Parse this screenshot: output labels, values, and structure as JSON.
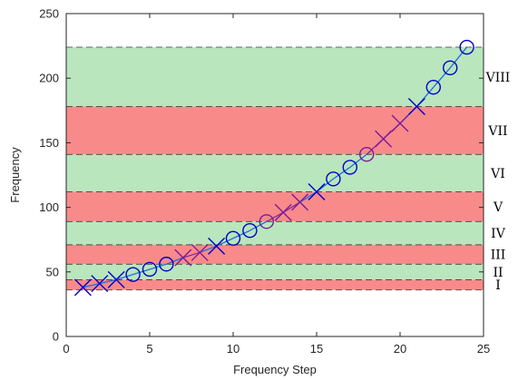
{
  "chart_data": {
    "type": "line",
    "xlabel": "Frequency Step",
    "ylabel": "Frequency",
    "xlim": [
      0,
      25
    ],
    "ylim": [
      0,
      250
    ],
    "xticks": [
      0,
      5,
      10,
      15,
      20,
      25
    ],
    "yticks": [
      0,
      50,
      100,
      150,
      200,
      250
    ],
    "grid": false,
    "colors": {
      "band_green": "#b9e6bd",
      "band_red": "#f98a8a",
      "band_edge": "#3a3a3a",
      "marker_blue": "#0000c8",
      "marker_purple": "#7a1a9a",
      "line_blue": "#1f6fd6",
      "line_purple": "#8a2a8a"
    },
    "bands": [
      {
        "label": "I",
        "y0": 36,
        "y1": 44,
        "color": "red"
      },
      {
        "label": "II",
        "y0": 44,
        "y1": 56,
        "color": "green"
      },
      {
        "label": "III",
        "y0": 56,
        "y1": 71,
        "color": "red"
      },
      {
        "label": "IV",
        "y0": 71,
        "y1": 89,
        "color": "green"
      },
      {
        "label": "V",
        "y0": 89,
        "y1": 112,
        "color": "red"
      },
      {
        "label": "VI",
        "y0": 112,
        "y1": 141,
        "color": "green"
      },
      {
        "label": "VII",
        "y0": 141,
        "y1": 178,
        "color": "red"
      },
      {
        "label": "VIII",
        "y0": 178,
        "y1": 224,
        "color": "green"
      }
    ],
    "points": [
      {
        "x": 1,
        "y": 38,
        "marker": "x",
        "color": "blue"
      },
      {
        "x": 2,
        "y": 41,
        "marker": "x",
        "color": "blue"
      },
      {
        "x": 3,
        "y": 44,
        "marker": "x",
        "color": "blue"
      },
      {
        "x": 4,
        "y": 48,
        "marker": "o",
        "color": "blue"
      },
      {
        "x": 5,
        "y": 52,
        "marker": "o",
        "color": "blue"
      },
      {
        "x": 6,
        "y": 56,
        "marker": "o",
        "color": "blue"
      },
      {
        "x": 7,
        "y": 61,
        "marker": "x",
        "color": "purple"
      },
      {
        "x": 8,
        "y": 65,
        "marker": "x",
        "color": "purple"
      },
      {
        "x": 9,
        "y": 70,
        "marker": "x",
        "color": "blue"
      },
      {
        "x": 10,
        "y": 76,
        "marker": "o",
        "color": "blue"
      },
      {
        "x": 11,
        "y": 82,
        "marker": "o",
        "color": "blue"
      },
      {
        "x": 12,
        "y": 89,
        "marker": "o",
        "color": "purple"
      },
      {
        "x": 13,
        "y": 96,
        "marker": "x",
        "color": "purple"
      },
      {
        "x": 14,
        "y": 104,
        "marker": "x",
        "color": "purple"
      },
      {
        "x": 15,
        "y": 112,
        "marker": "x",
        "color": "blue"
      },
      {
        "x": 16,
        "y": 122,
        "marker": "o",
        "color": "blue"
      },
      {
        "x": 17,
        "y": 131,
        "marker": "o",
        "color": "blue"
      },
      {
        "x": 18,
        "y": 141,
        "marker": "o",
        "color": "purple"
      },
      {
        "x": 19,
        "y": 153,
        "marker": "x",
        "color": "purple"
      },
      {
        "x": 20,
        "y": 165,
        "marker": "x",
        "color": "purple"
      },
      {
        "x": 21,
        "y": 178,
        "marker": "x",
        "color": "blue"
      },
      {
        "x": 22,
        "y": 193,
        "marker": "o",
        "color": "blue"
      },
      {
        "x": 23,
        "y": 208,
        "marker": "o",
        "color": "blue"
      },
      {
        "x": 24,
        "y": 224,
        "marker": "o",
        "color": "blue"
      }
    ]
  }
}
